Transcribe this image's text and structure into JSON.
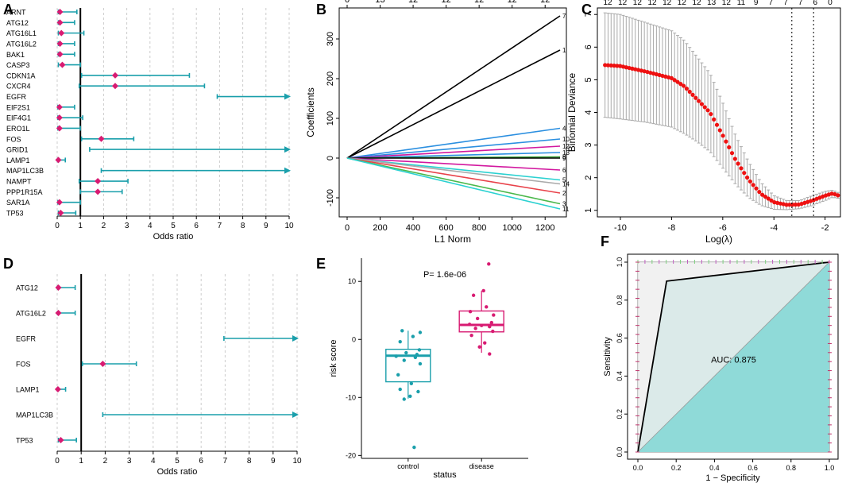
{
  "colors": {
    "teal": "#1a9fab",
    "pink": "#d81b72",
    "red": "#ee1111",
    "grey": "#a9a9a9",
    "roc_fill": "#8fdad8",
    "line_black": "#000000"
  },
  "chart_data": [
    {
      "panel": "A",
      "type": "forest",
      "xlabel": "Odds ratio",
      "xlim": [
        0,
        10
      ],
      "ticks": [
        0,
        1,
        2,
        3,
        4,
        5,
        6,
        7,
        8,
        9,
        10
      ],
      "rows": [
        {
          "name": "ARNT",
          "or": 0.12,
          "lo": 0.05,
          "hi": 0.85,
          "arrow": false
        },
        {
          "name": "ATG12",
          "or": 0.12,
          "lo": 0.05,
          "hi": 0.75,
          "arrow": false
        },
        {
          "name": "ATG16L1",
          "or": 0.18,
          "lo": 0.05,
          "hi": 1.15,
          "arrow": false
        },
        {
          "name": "ATG16L2",
          "or": 0.12,
          "lo": 0.05,
          "hi": 0.75,
          "arrow": false
        },
        {
          "name": "BAK1",
          "or": 0.12,
          "lo": 0.05,
          "hi": 0.75,
          "arrow": false
        },
        {
          "name": "CASP3",
          "or": 0.22,
          "lo": 0.05,
          "hi": 1.0,
          "arrow": false
        },
        {
          "name": "CDKN1A",
          "or": 2.5,
          "lo": 1.05,
          "hi": 5.7,
          "arrow": false
        },
        {
          "name": "CXCR4",
          "or": 2.5,
          "lo": 0.95,
          "hi": 6.35,
          "arrow": false
        },
        {
          "name": "EGFR",
          "or": null,
          "lo": 6.9,
          "hi": 10,
          "arrow": true
        },
        {
          "name": "EIF2S1",
          "or": 0.1,
          "lo": 0.03,
          "hi": 0.75,
          "arrow": false
        },
        {
          "name": "EIF4G1",
          "or": 0.1,
          "lo": 0.03,
          "hi": 1.1,
          "arrow": false
        },
        {
          "name": "ERO1L",
          "or": 0.1,
          "lo": 0.03,
          "hi": 1.0,
          "arrow": false
        },
        {
          "name": "FOS",
          "or": 1.9,
          "lo": 1.05,
          "hi": 3.3,
          "arrow": false
        },
        {
          "name": "GRID1",
          "or": null,
          "lo": 1.4,
          "hi": 10,
          "arrow": true
        },
        {
          "name": "LAMP1",
          "or": 0.05,
          "lo": 0.02,
          "hi": 0.35,
          "arrow": false
        },
        {
          "name": "MAP1LC3B",
          "or": null,
          "lo": 1.9,
          "hi": 10,
          "arrow": true
        },
        {
          "name": "NAMPT",
          "or": 1.75,
          "lo": 0.95,
          "hi": 3.05,
          "arrow": false
        },
        {
          "name": "PPP1R15A",
          "or": 1.75,
          "lo": 1.0,
          "hi": 2.8,
          "arrow": false
        },
        {
          "name": "SAR1A",
          "or": 0.1,
          "lo": 0.03,
          "hi": 1.0,
          "arrow": false
        },
        {
          "name": "TP53",
          "or": 0.15,
          "lo": 0.05,
          "hi": 0.8,
          "arrow": false
        }
      ]
    },
    {
      "panel": "B",
      "type": "line",
      "title": "",
      "xlabel": "L1 Norm",
      "ylabel": "Coefficients",
      "xlim": [
        0,
        1300
      ],
      "ylim": [
        -140,
        370
      ],
      "xticks": [
        0,
        200,
        400,
        600,
        800,
        1000,
        1200
      ],
      "yticks": [
        -100,
        0,
        100,
        200,
        300
      ],
      "top_ticks": [
        "0",
        "13",
        "12",
        "12",
        "12",
        "12",
        "12"
      ],
      "series": [
        {
          "name": "7",
          "end": 358,
          "color": "#000000"
        },
        {
          "name": "1",
          "end": 272,
          "color": "#000000"
        },
        {
          "name": "4",
          "end": 75,
          "color": "#2b8fe0"
        },
        {
          "name": "10",
          "end": 48,
          "color": "#2b8fe0"
        },
        {
          "name": "12",
          "end": 30,
          "color": "#d2189f"
        },
        {
          "name": "13",
          "end": 14,
          "color": "#2b8fe0"
        },
        {
          "name": "8",
          "end": 3,
          "color": "#2e9e2e"
        },
        {
          "name": "9",
          "end": 0,
          "color": "#000000"
        },
        {
          "name": "6",
          "end": -30,
          "color": "#d2189f"
        },
        {
          "name": "5",
          "end": -55,
          "color": "#2bd1d1"
        },
        {
          "name": "14",
          "end": -65,
          "color": "#aaaaaa"
        },
        {
          "name": "2",
          "end": -88,
          "color": "#e8424a"
        },
        {
          "name": "3",
          "end": -115,
          "color": "#4bb84b"
        },
        {
          "name": "11",
          "end": -128,
          "color": "#2bd1d1"
        }
      ]
    },
    {
      "panel": "C",
      "type": "scatter",
      "xlabel": "Log(λ)",
      "ylabel": "Binomial Deviance",
      "xlim": [
        -10.9,
        -1.4
      ],
      "ylim": [
        0.8,
        7.2
      ],
      "xticks": [
        -10,
        -8,
        -6,
        -4,
        -2
      ],
      "yticks": [
        1,
        2,
        3,
        4,
        5,
        6,
        7
      ],
      "top_ticks": [
        "12",
        "12",
        "12",
        "12",
        "12",
        "12",
        "12",
        "13",
        "12",
        "11",
        "9",
        "7",
        "7",
        "7",
        "6",
        "0"
      ],
      "vlines": [
        -3.3,
        -2.45
      ],
      "curve": [
        [
          -10.6,
          5.45
        ],
        [
          -10,
          5.42
        ],
        [
          -9,
          5.25
        ],
        [
          -8,
          5.05
        ],
        [
          -7.5,
          4.8
        ],
        [
          -7,
          4.4
        ],
        [
          -6.5,
          4.0
        ],
        [
          -6,
          3.3
        ],
        [
          -5.5,
          2.55
        ],
        [
          -5,
          1.95
        ],
        [
          -4.5,
          1.5
        ],
        [
          -4,
          1.25
        ],
        [
          -3.5,
          1.17
        ],
        [
          -3,
          1.18
        ],
        [
          -2.5,
          1.3
        ],
        [
          -2,
          1.45
        ],
        [
          -1.7,
          1.52
        ],
        [
          -1.5,
          1.46
        ]
      ],
      "err_upper": [
        [
          -10.6,
          7.05
        ],
        [
          -10,
          7.0
        ],
        [
          -9,
          6.75
        ],
        [
          -8,
          6.5
        ],
        [
          -7.5,
          6.2
        ],
        [
          -7,
          5.7
        ],
        [
          -6.5,
          5.2
        ],
        [
          -6,
          4.3
        ],
        [
          -5.5,
          3.3
        ],
        [
          -5,
          2.5
        ],
        [
          -4.5,
          1.85
        ],
        [
          -4,
          1.45
        ],
        [
          -3.5,
          1.3
        ],
        [
          -3,
          1.3
        ],
        [
          -2.5,
          1.45
        ],
        [
          -2,
          1.58
        ],
        [
          -1.7,
          1.62
        ],
        [
          -1.5,
          1.55
        ]
      ],
      "err_lower": [
        [
          -10.6,
          3.85
        ],
        [
          -10,
          3.8
        ],
        [
          -9,
          3.7
        ],
        [
          -8,
          3.55
        ],
        [
          -7.5,
          3.35
        ],
        [
          -7,
          3.1
        ],
        [
          -6.5,
          2.8
        ],
        [
          -6,
          2.3
        ],
        [
          -5.5,
          1.8
        ],
        [
          -5,
          1.4
        ],
        [
          -4.5,
          1.15
        ],
        [
          -4,
          1.03
        ],
        [
          -3.5,
          1.02
        ],
        [
          -3,
          1.05
        ],
        [
          -2.5,
          1.15
        ],
        [
          -2,
          1.3
        ],
        [
          -1.7,
          1.4
        ],
        [
          -1.5,
          1.37
        ]
      ]
    },
    {
      "panel": "D",
      "type": "forest",
      "xlabel": "Odds ratio",
      "xlim": [
        0,
        10
      ],
      "ticks": [
        0,
        1,
        2,
        3,
        4,
        5,
        6,
        7,
        8,
        9,
        10
      ],
      "rows": [
        {
          "name": "ATG12",
          "or": 0.05,
          "lo": 0.02,
          "hi": 0.75,
          "arrow": false
        },
        {
          "name": "ATG16L2",
          "or": 0.05,
          "lo": 0.02,
          "hi": 0.75,
          "arrow": false
        },
        {
          "name": "EGFR",
          "or": null,
          "lo": 6.95,
          "hi": 10,
          "arrow": true
        },
        {
          "name": "FOS",
          "or": 1.9,
          "lo": 1.05,
          "hi": 3.3,
          "arrow": false
        },
        {
          "name": "LAMP1",
          "or": 0.03,
          "lo": 0.01,
          "hi": 0.35,
          "arrow": false
        },
        {
          "name": "MAP1LC3B",
          "or": null,
          "lo": 1.9,
          "hi": 10,
          "arrow": true
        },
        {
          "name": "TP53",
          "or": 0.15,
          "lo": 0.05,
          "hi": 0.8,
          "arrow": false
        }
      ]
    },
    {
      "panel": "E",
      "type": "box",
      "xlabel": "status",
      "ylabel": "risk score",
      "annotation": "P= 1.6e-06",
      "ylim": [
        -20.5,
        14
      ],
      "yticks": [
        -20,
        -10,
        0,
        10
      ],
      "groups": [
        {
          "name": "control",
          "color": "#1a9fab",
          "q1": -7.3,
          "median": -2.8,
          "q3": -1.7,
          "wlo": -10.2,
          "whi": 1.5,
          "points": [
            [
              0.15,
              -18.6
            ],
            [
              -0.1,
              -10.3
            ],
            [
              0.05,
              -9.8
            ],
            [
              0.25,
              -9.0
            ],
            [
              -0.2,
              -8.6
            ],
            [
              0.08,
              -7.6
            ],
            [
              -0.25,
              -6.1
            ],
            [
              0.3,
              -4.2
            ],
            [
              -0.1,
              -3.6
            ],
            [
              0.18,
              -3.1
            ],
            [
              -0.3,
              -2.9
            ],
            [
              0.22,
              -2.6
            ],
            [
              -0.05,
              -2.3
            ],
            [
              0.28,
              -1.8
            ],
            [
              -0.2,
              -0.4
            ],
            [
              0.12,
              0.5
            ],
            [
              0.3,
              1.2
            ],
            [
              -0.15,
              1.5
            ]
          ]
        },
        {
          "name": "disease",
          "color": "#d81b72",
          "q1": 1.3,
          "median": 2.5,
          "q3": 4.9,
          "wlo": -2.3,
          "whi": 8.4,
          "points": [
            [
              0.18,
              13.0
            ],
            [
              0.05,
              8.4
            ],
            [
              -0.2,
              7.6
            ],
            [
              0.12,
              5.6
            ],
            [
              -0.28,
              4.8
            ],
            [
              0.3,
              4.2
            ],
            [
              -0.1,
              3.6
            ],
            [
              0.25,
              2.9
            ],
            [
              -0.3,
              2.6
            ],
            [
              0.0,
              2.4
            ],
            [
              0.2,
              2.2
            ],
            [
              -0.15,
              1.9
            ],
            [
              0.28,
              1.4
            ],
            [
              -0.25,
              0.7
            ],
            [
              0.08,
              -0.6
            ],
            [
              -0.05,
              -1.3
            ],
            [
              0.2,
              -2.5
            ]
          ]
        }
      ]
    },
    {
      "panel": "F",
      "type": "roc",
      "xlabel": "1 − Specificity",
      "ylabel": "Sensitivity",
      "annotation": "AUC: 0.875",
      "xlim": [
        0,
        1
      ],
      "ylim": [
        0,
        1
      ],
      "ticks": [
        "0.0",
        "0.2",
        "0.4",
        "0.6",
        "0.8",
        "1.0"
      ],
      "curve": [
        [
          0,
          0
        ],
        [
          0.15,
          0.9
        ],
        [
          1,
          1
        ]
      ]
    }
  ],
  "panel_letters": [
    "A",
    "B",
    "C",
    "D",
    "E",
    "F"
  ]
}
